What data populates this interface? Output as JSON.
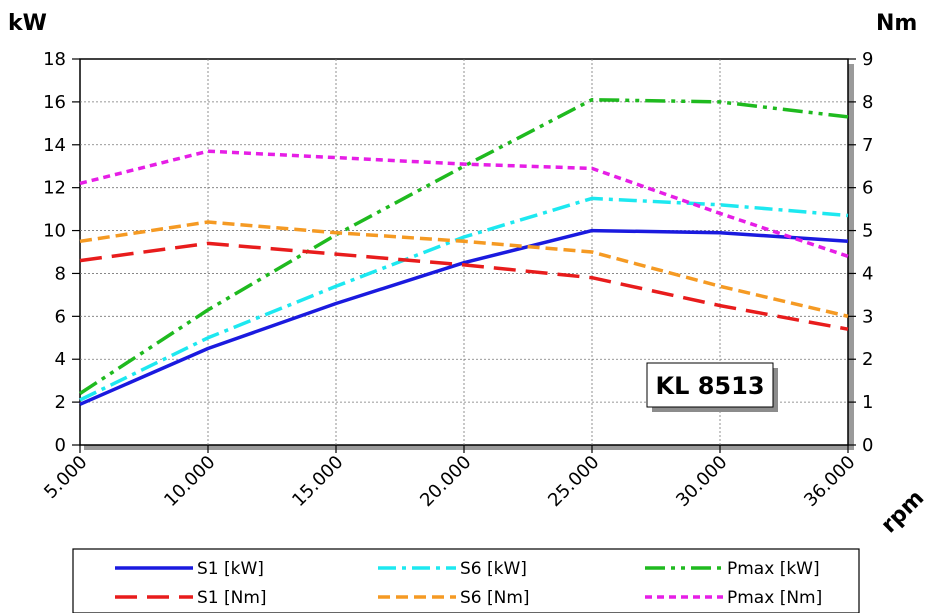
{
  "chart_data": {
    "type": "line",
    "model_label": "KL 8513",
    "y_left_unit": "kW",
    "y_right_unit": "Nm",
    "x_unit": "rpm",
    "x": [
      5000,
      10000,
      15000,
      20000,
      25000,
      30000,
      36000
    ],
    "x_tick_labels": [
      "5.000",
      "10.000",
      "15.000",
      "20.000",
      "25.000",
      "30.000",
      "36.000"
    ],
    "y_left_ticks": [
      "0",
      "2",
      "4",
      "6",
      "8",
      "10",
      "12",
      "14",
      "16",
      "18"
    ],
    "y_right_ticks": [
      "0",
      "1",
      "2",
      "3",
      "4",
      "5",
      "6",
      "7",
      "8",
      "9"
    ],
    "ylim_left": [
      0,
      18
    ],
    "ylim_right": [
      0,
      9
    ],
    "grid": true,
    "legend_position": "bottom",
    "series": [
      {
        "name": "S1 [kW]",
        "axis": "left",
        "color": "#1a1adf",
        "dash": "solid",
        "values": [
          1.9,
          4.5,
          6.6,
          8.5,
          10.0,
          9.9,
          9.5
        ]
      },
      {
        "name": "S6 [kW]",
        "axis": "left",
        "color": "#1de8f0",
        "dash": "dashdot",
        "values": [
          2.1,
          5.0,
          7.4,
          9.7,
          11.5,
          11.2,
          10.7
        ]
      },
      {
        "name": "Pmax [kW]",
        "axis": "left",
        "color": "#1fba1f",
        "dash": "dashdotdot",
        "values": [
          2.4,
          6.3,
          9.8,
          13.0,
          16.1,
          16.0,
          15.3
        ]
      },
      {
        "name": "S1 [Nm]",
        "axis": "right",
        "color": "#e81c1c",
        "dash": "longdash",
        "values": [
          4.3,
          4.7,
          4.45,
          4.2,
          3.9,
          3.25,
          2.7
        ]
      },
      {
        "name": "S6 [Nm]",
        "axis": "right",
        "color": "#f59a23",
        "dash": "dash",
        "values": [
          4.75,
          5.2,
          4.95,
          4.75,
          4.5,
          3.7,
          3.0
        ]
      },
      {
        "name": "Pmax [Nm]",
        "axis": "right",
        "color": "#e61ee6",
        "dash": "shortdash",
        "values": [
          6.1,
          6.85,
          6.7,
          6.55,
          6.45,
          5.4,
          4.4
        ]
      }
    ]
  }
}
